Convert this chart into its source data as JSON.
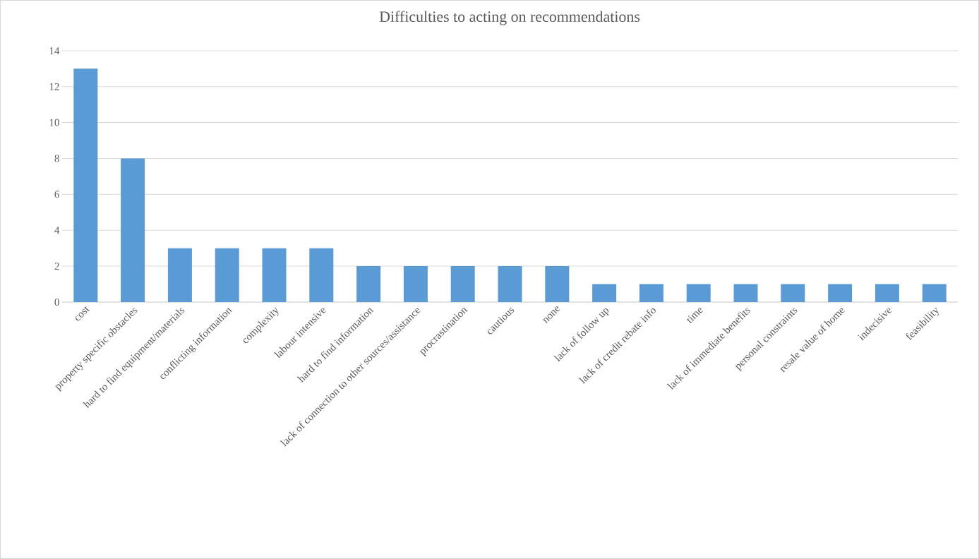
{
  "chart_data": {
    "type": "bar",
    "title": "Difficulties to acting on recommendations",
    "categories": [
      "cost",
      "property specific obstacles",
      "hard to find equipment/materials",
      "conflicting information",
      "complexity",
      "labour intensive",
      "hard to find information",
      "lack of connection to other sources/assistance",
      "procrastination",
      "cautious",
      "none",
      "lack of follow up",
      "lack of credit rebate info",
      "time",
      "lack of immediate benefits",
      "personal constraints",
      "resale value of home",
      "indecisive",
      "feasibility"
    ],
    "values": [
      13,
      8,
      3,
      3,
      3,
      3,
      2,
      2,
      2,
      2,
      2,
      1,
      1,
      1,
      1,
      1,
      1,
      1,
      1
    ],
    "color": "#5b9bd5",
    "ylim": [
      0,
      14
    ],
    "yticks": [
      0,
      2,
      4,
      6,
      8,
      10,
      12,
      14
    ],
    "grid": "y"
  }
}
